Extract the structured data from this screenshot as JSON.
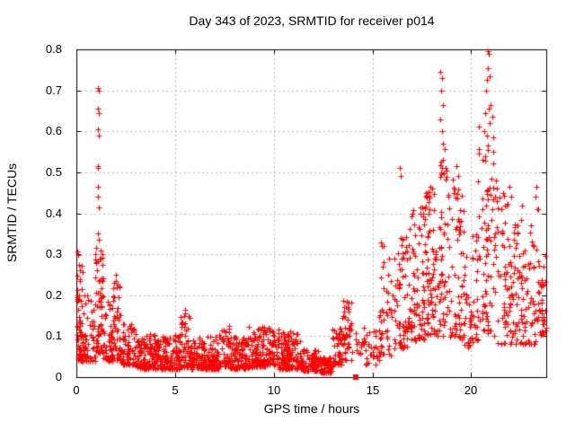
{
  "chart_data": {
    "type": "scatter",
    "title": "Day 343 of 2023, SRMTID for receiver p014",
    "xlabel": "GPS time / hours",
    "ylabel": "SRMTID / TECUs",
    "xlim": [
      0,
      23.8
    ],
    "ylim": [
      0,
      0.8
    ],
    "xticks": [
      0,
      5,
      10,
      15,
      20
    ],
    "xtick_labels": [
      "0",
      "5",
      "10",
      "15",
      "20"
    ],
    "yticks": [
      0,
      0.1,
      0.2,
      0.3,
      0.4,
      0.5,
      0.6,
      0.7,
      0.8
    ],
    "ytick_labels": [
      "0",
      "0.1",
      "0.2",
      "0.3",
      "0.4",
      "0.5",
      "0.6",
      "0.7",
      "0.8"
    ],
    "grid": true,
    "grid_style": "dashed",
    "legend": false,
    "marker": "plus",
    "marker_color": "#ff0000",
    "grid_color": "#b5b5b5",
    "axis_color": "#000000",
    "background_color": "#ffffff",
    "description": "Dense scatter of SRMTID values vs GPS time. High spikes near 1.1h (to 0.71), quiet low band 0.02-0.12 TECU from 3h to 13h with minimum near 12.5h, activity rising after 15h with spikes near 18.5h (to 0.75) and 20.9h (to 0.80), tapering to ~0.2 by 23.8h. A single filled red square datum sits on the x-axis near 14.15h.",
    "series_bands": [
      [
        0.02,
        0.35,
        70,
        0.04,
        0.31,
        1.8
      ],
      [
        0.3,
        0.95,
        60,
        0.04,
        0.2,
        2.0
      ],
      [
        0.95,
        1.35,
        70,
        0.06,
        0.33,
        1.5
      ],
      [
        1.35,
        1.85,
        55,
        0.04,
        0.2,
        2.0
      ],
      [
        1.85,
        2.25,
        45,
        0.04,
        0.25,
        1.8
      ],
      [
        2.25,
        3.0,
        70,
        0.03,
        0.14,
        2.0
      ],
      [
        3.0,
        5.25,
        260,
        0.02,
        0.105,
        1.8
      ],
      [
        5.25,
        5.75,
        50,
        0.025,
        0.17,
        1.9
      ],
      [
        5.75,
        7.25,
        170,
        0.02,
        0.1,
        1.9
      ],
      [
        7.25,
        7.75,
        45,
        0.025,
        0.125,
        1.8
      ],
      [
        7.75,
        8.75,
        110,
        0.02,
        0.1,
        1.9
      ],
      [
        8.75,
        9.65,
        95,
        0.025,
        0.125,
        1.8
      ],
      [
        9.65,
        10.25,
        65,
        0.03,
        0.13,
        1.7
      ],
      [
        10.25,
        11.35,
        110,
        0.02,
        0.11,
        2.0
      ],
      [
        10.45,
        10.85,
        25,
        0.03,
        0.115,
        1.5
      ],
      [
        11.35,
        12.25,
        90,
        0.015,
        0.07,
        1.8
      ],
      [
        12.25,
        12.95,
        70,
        0.01,
        0.05,
        1.6
      ],
      [
        12.95,
        13.45,
        45,
        0.03,
        0.12,
        1.6
      ],
      [
        13.45,
        14.0,
        45,
        0.04,
        0.19,
        1.7
      ],
      [
        14.05,
        14.65,
        18,
        0.05,
        0.13,
        1.5
      ],
      [
        14.65,
        15.35,
        30,
        0.03,
        0.12,
        1.5
      ],
      [
        15.35,
        15.95,
        45,
        0.05,
        0.33,
        1.7
      ],
      [
        15.95,
        16.85,
        70,
        0.07,
        0.36,
        1.5
      ],
      [
        16.85,
        17.65,
        80,
        0.09,
        0.42,
        1.4
      ],
      [
        17.65,
        18.35,
        80,
        0.1,
        0.47,
        1.4
      ],
      [
        18.35,
        18.85,
        55,
        0.1,
        0.56,
        1.3
      ],
      [
        18.85,
        19.65,
        70,
        0.09,
        0.5,
        1.4
      ],
      [
        19.65,
        20.35,
        50,
        0.07,
        0.36,
        1.5
      ],
      [
        20.35,
        21.35,
        90,
        0.1,
        0.62,
        1.2
      ],
      [
        21.35,
        22.35,
        85,
        0.08,
        0.46,
        1.4
      ],
      [
        22.35,
        23.35,
        75,
        0.08,
        0.42,
        1.5
      ],
      [
        23.35,
        23.8,
        40,
        0.1,
        0.3,
        1.3
      ]
    ],
    "peak_points": [
      [
        1.08,
        0.705
      ],
      [
        1.12,
        0.7
      ],
      [
        1.1,
        0.655
      ],
      [
        1.13,
        0.645
      ],
      [
        1.09,
        0.605
      ],
      [
        1.12,
        0.59
      ],
      [
        1.07,
        0.515
      ],
      [
        1.1,
        0.51
      ],
      [
        1.11,
        0.465
      ],
      [
        1.09,
        0.44
      ],
      [
        1.12,
        0.415
      ],
      [
        1.08,
        0.35
      ],
      [
        1.13,
        0.335
      ],
      [
        2.02,
        0.25
      ],
      [
        1.98,
        0.235
      ],
      [
        2.05,
        0.22
      ],
      [
        5.5,
        0.165
      ],
      [
        5.45,
        0.15
      ],
      [
        13.7,
        0.185
      ],
      [
        13.75,
        0.17
      ],
      [
        16.4,
        0.51
      ],
      [
        16.45,
        0.49
      ],
      [
        18.45,
        0.745
      ],
      [
        18.52,
        0.73
      ],
      [
        18.48,
        0.7
      ],
      [
        18.55,
        0.665
      ],
      [
        18.42,
        0.63
      ],
      [
        18.5,
        0.6
      ],
      [
        18.58,
        0.57
      ],
      [
        18.46,
        0.525
      ],
      [
        19.25,
        0.515
      ],
      [
        19.35,
        0.49
      ],
      [
        20.82,
        0.795
      ],
      [
        20.9,
        0.79
      ],
      [
        20.86,
        0.755
      ],
      [
        20.93,
        0.735
      ],
      [
        20.8,
        0.725
      ],
      [
        20.75,
        0.7
      ],
      [
        21.0,
        0.665
      ],
      [
        20.88,
        0.655
      ],
      [
        20.7,
        0.645
      ],
      [
        21.05,
        0.635
      ],
      [
        20.95,
        0.62
      ],
      [
        20.65,
        0.6
      ],
      [
        21.1,
        0.585
      ],
      [
        20.85,
        0.565
      ],
      [
        21.95,
        0.465
      ],
      [
        23.3,
        0.465
      ],
      [
        23.25,
        0.44
      ],
      [
        23.38,
        0.41
      ]
    ],
    "special_points": [
      {
        "x": 14.15,
        "y": 0,
        "marker": "filled-square"
      }
    ]
  }
}
